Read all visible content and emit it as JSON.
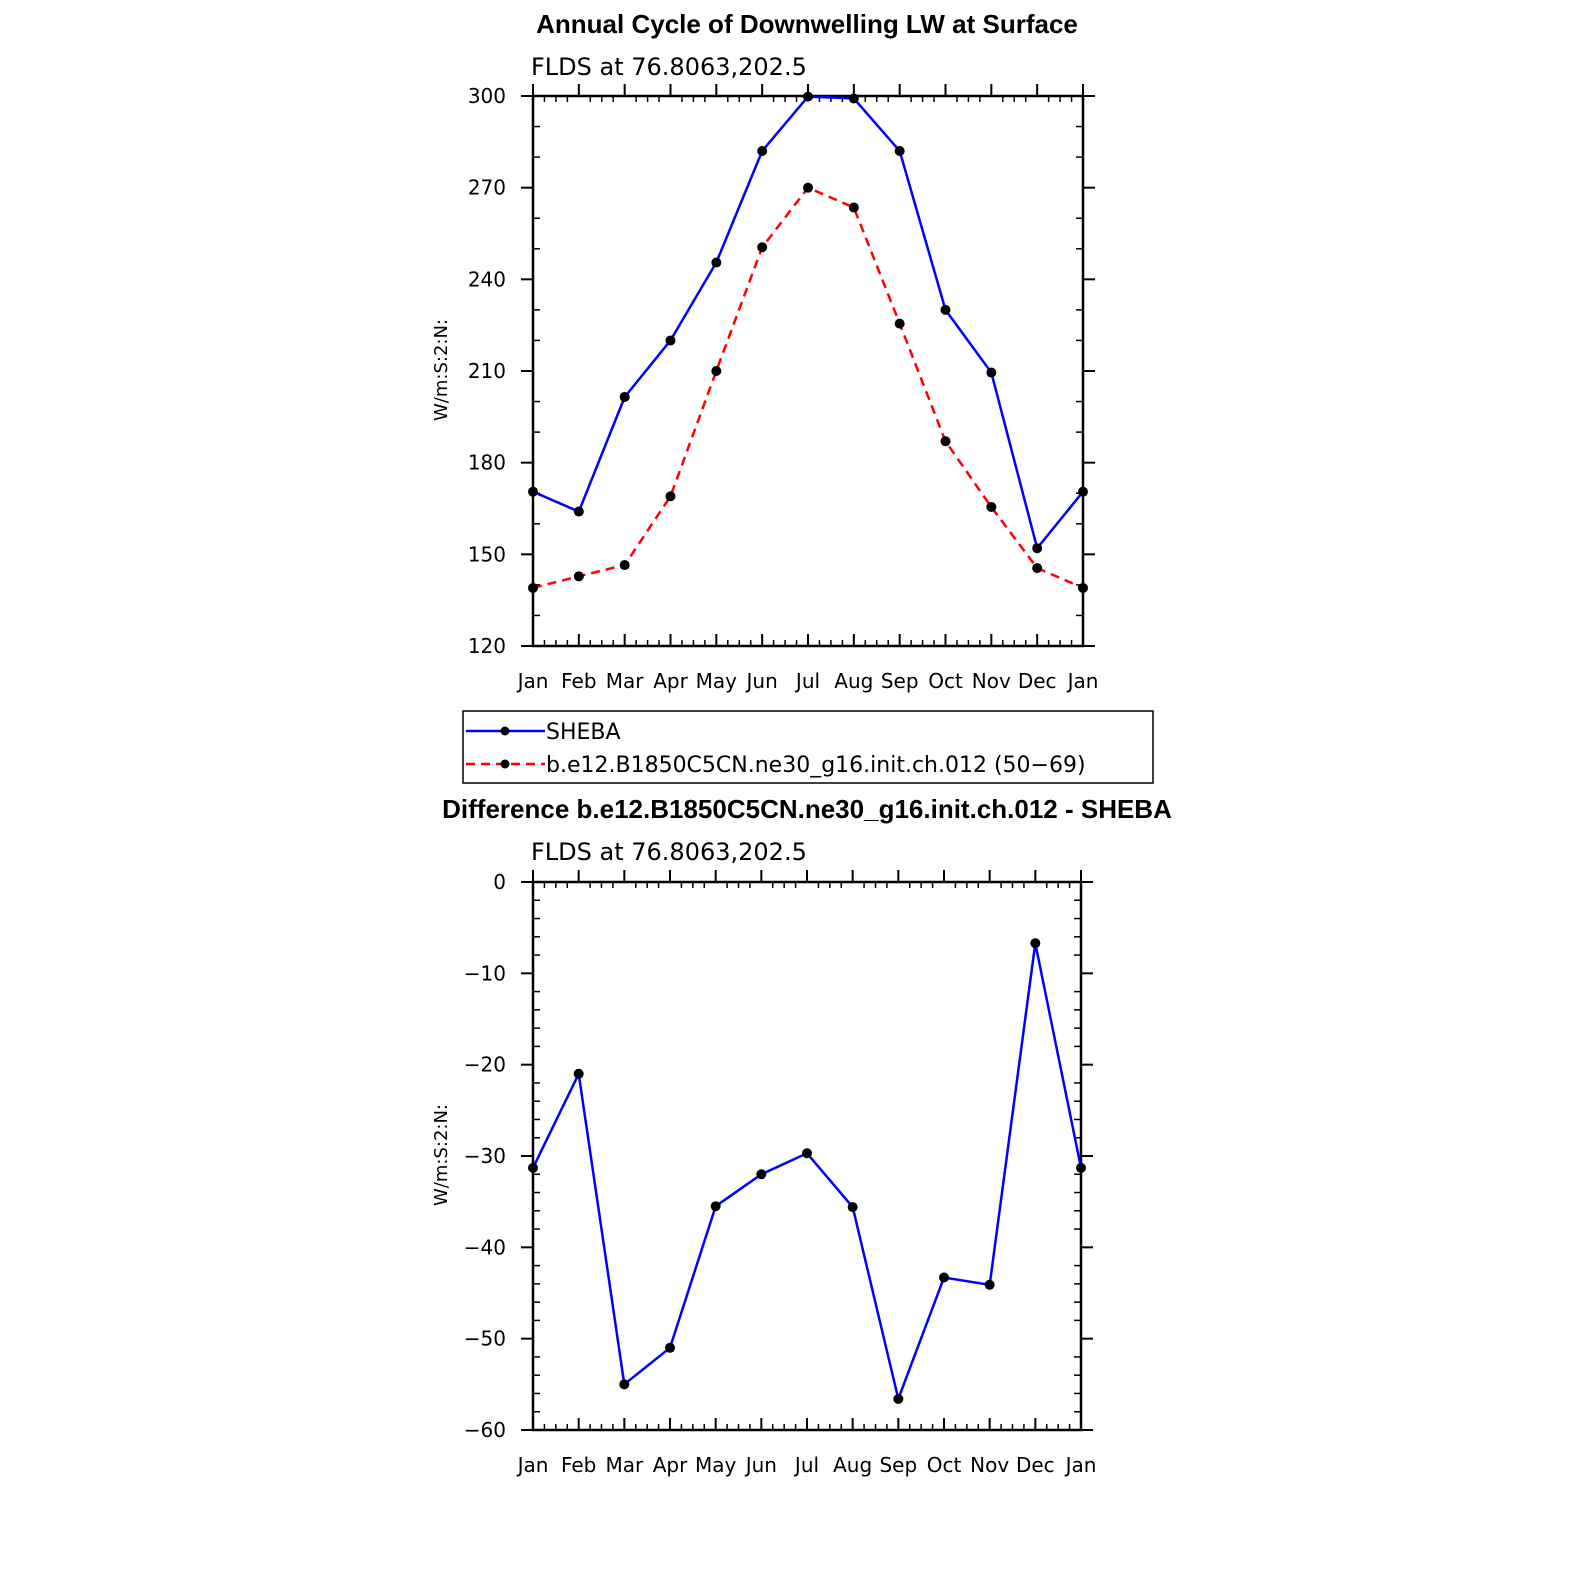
{
  "chart_data": [
    {
      "type": "line",
      "title": "Annual Cycle of Downwelling LW at Surface",
      "subtitle": "FLDS at 76.8063,202.5",
      "ylabel": "W/m:S:2:N:",
      "categories": [
        "Jan",
        "Feb",
        "Mar",
        "Apr",
        "May",
        "Jun",
        "Jul",
        "Aug",
        "Sep",
        "Oct",
        "Nov",
        "Dec",
        "Jan"
      ],
      "ylim": [
        120,
        300
      ],
      "yticks": [
        120,
        150,
        180,
        210,
        240,
        270,
        300
      ],
      "series": [
        {
          "name": "SHEBA",
          "color": "#0000ff",
          "dash": "solid",
          "values": [
            170.5,
            164,
            201.5,
            220,
            245.5,
            282,
            299.8,
            299.2,
            282,
            230,
            209.5,
            152,
            170.5
          ]
        },
        {
          "name": "b.e12.B1850C5CN.ne30_g16.init.ch.012 (50−69)",
          "color": "#ff0000",
          "dash": "dashed",
          "values": [
            139,
            142.8,
            146.5,
            169,
            210,
            250.5,
            270,
            263.5,
            225.5,
            187,
            165.5,
            145.5,
            139
          ]
        }
      ],
      "legend": "below"
    },
    {
      "type": "line",
      "title": "Difference b.e12.B1850C5CN.ne30_g16.init.ch.012 - SHEBA",
      "subtitle": "FLDS at 76.8063,202.5",
      "ylabel": "W/m:S:2:N:",
      "categories": [
        "Jan",
        "Feb",
        "Mar",
        "Apr",
        "May",
        "Jun",
        "Jul",
        "Aug",
        "Sep",
        "Oct",
        "Nov",
        "Dec",
        "Jan"
      ],
      "ylim": [
        -60,
        0
      ],
      "yticks": [
        -60,
        -50,
        -40,
        -30,
        -20,
        -10,
        0
      ],
      "ytick_labels": [
        "−60",
        "−50",
        "−40",
        "−30",
        "−20",
        "−10",
        "0"
      ],
      "series": [
        {
          "color": "#0000ff",
          "dash": "solid",
          "values": [
            -31.3,
            -21,
            -55,
            -51,
            -35.5,
            -32,
            -29.7,
            -35.6,
            -56.6,
            -43.3,
            -44.1,
            -6.7,
            -31.3
          ]
        }
      ]
    }
  ]
}
